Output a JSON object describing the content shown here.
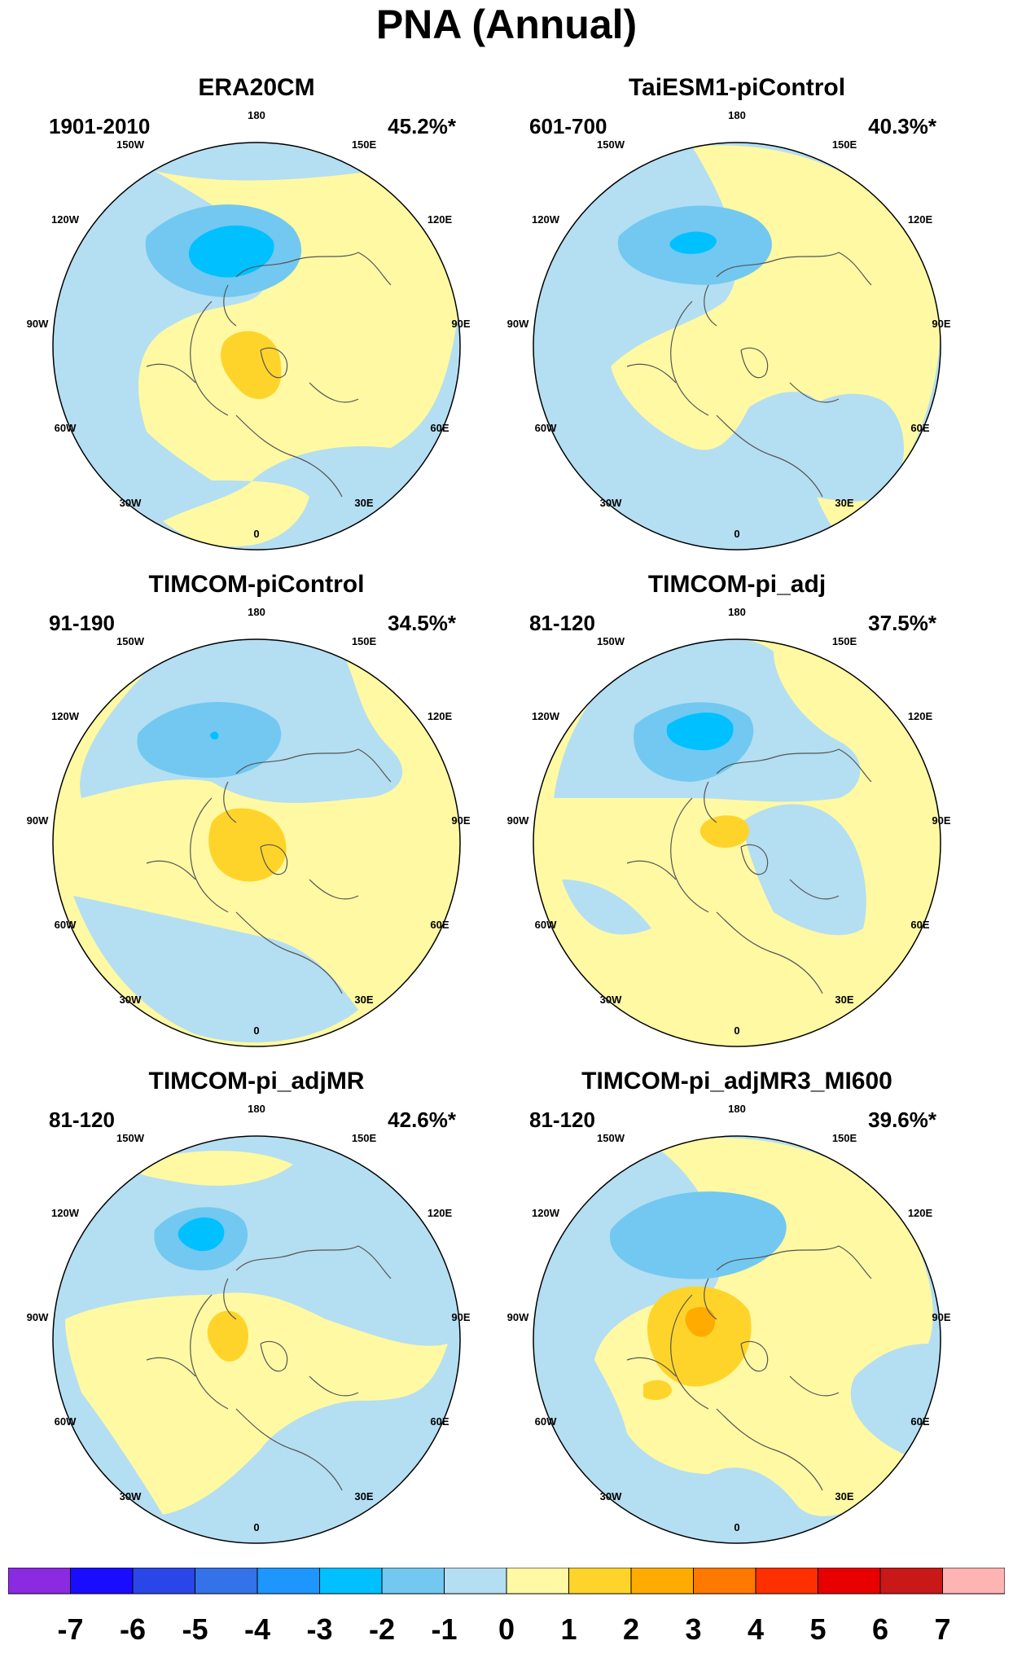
{
  "figure_title": "PNA (Annual)",
  "panels": [
    {
      "title": "ERA20CM",
      "period": "1901-2010",
      "variance": "45.2%*"
    },
    {
      "title": "TaiESM1-piControl",
      "period": "601-700",
      "variance": "40.3%*"
    },
    {
      "title": "TIMCOM-piControl",
      "period": "91-190",
      "variance": "34.5%*"
    },
    {
      "title": "TIMCOM-pi_adj",
      "period": "81-120",
      "variance": "37.5%*"
    },
    {
      "title": "TIMCOM-pi_adjMR",
      "period": "81-120",
      "variance": "42.6%*"
    },
    {
      "title": "TIMCOM-pi_adjMR3_MI600",
      "period": "81-120",
      "variance": "39.6%*"
    }
  ],
  "longitude_labels": [
    "180",
    "150E",
    "120E",
    "90E",
    "60E",
    "30E",
    "0",
    "30W",
    "60W",
    "90W",
    "120W",
    "150W"
  ],
  "chart_data": {
    "type": "heatmap",
    "projection": "north polar stereographic",
    "colorbar": {
      "ticks": [
        "-7",
        "-6",
        "-5",
        "-4",
        "-3",
        "-2",
        "-1",
        "0",
        "1",
        "2",
        "3",
        "4",
        "5",
        "6",
        "7"
      ],
      "colors": [
        "#8a2be2",
        "#1a0dff",
        "#2b46e8",
        "#3372e8",
        "#1e96ff",
        "#00c0ff",
        "#72c8f0",
        "#b4def2",
        "#fff9a3",
        "#ffd42a",
        "#ffab00",
        "#ff7800",
        "#ff3000",
        "#e80000",
        "#c81818",
        "#ffb4b4"
      ]
    },
    "fill_colors": {
      "land": "none",
      "coast": "#555555"
    }
  }
}
